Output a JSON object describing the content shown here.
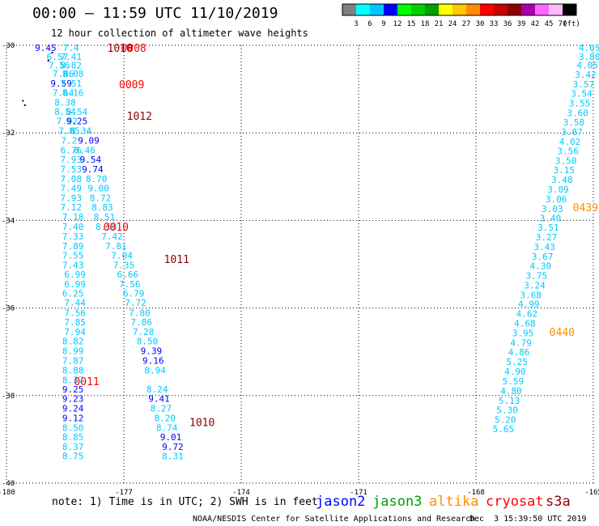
{
  "header": {
    "title": "00:00 — 11:59 UTC 11/10/2019",
    "subtitle": "12 hour collection of altimeter wave heights"
  },
  "legend_scale": {
    "colors": [
      "#808080",
      "#00ffff",
      "#00c8ff",
      "#0000ff",
      "#00ff00",
      "#00d000",
      "#00a000",
      "#ffff00",
      "#ffc800",
      "#ff8c00",
      "#ff0000",
      "#c80000",
      "#8b0000",
      "#aa00aa",
      "#ff66ff",
      "#ffbbff",
      "#000000"
    ],
    "labels": [
      "3",
      "6",
      "9",
      "12",
      "15",
      "18",
      "21",
      "24",
      "27",
      "30",
      "33",
      "36",
      "39",
      "42",
      "45",
      "70",
      "(ft)"
    ]
  },
  "missions": [
    {
      "name": "jason2",
      "color": "#0000ff"
    },
    {
      "name": "jason3",
      "color": "#00a000"
    },
    {
      "name": "altika",
      "color": "#ff8c00"
    },
    {
      "name": "cryosat",
      "color": "#ff0000"
    },
    {
      "name": "s3a",
      "color": "#8b0000"
    }
  ],
  "note": "note: 1) Time is in UTC; 2) SWH is in feet",
  "footer": {
    "left": "NOAA/NESDIS Center for Satellite Applications and Research",
    "right": "Dec  3 15:39:50 UTC 2019"
  },
  "chart_data": {
    "type": "scatter",
    "xlim": [
      -180,
      -165
    ],
    "ylim": [
      -40,
      -30
    ],
    "x_ticks": [
      "-180",
      "-177",
      "-174",
      "-171",
      "-168",
      "-165"
    ],
    "y_ticks": [
      "-30",
      "-32",
      "-34",
      "-36",
      "-38",
      "-40"
    ],
    "grid": true,
    "units": "ft",
    "track_west": [
      {
        "x": -179.0,
        "y": -30.06,
        "v": "9.45",
        "c": "#0000ff"
      },
      {
        "x": -178.7,
        "y": -30.26,
        "v": "6.57",
        "c": "#00c8ff"
      },
      {
        "x": -178.35,
        "y": -30.26,
        "v": "7.41",
        "c": "#00c8ff"
      },
      {
        "x": -178.35,
        "y": -30.06,
        "v": "7.4",
        "c": "#00c8ff"
      },
      {
        "x": -178.65,
        "y": -30.45,
        "v": "7.56",
        "c": "#00c8ff"
      },
      {
        "x": -178.35,
        "y": -30.45,
        "v": "8.82",
        "c": "#00c8ff"
      },
      {
        "x": -178.55,
        "y": -30.65,
        "v": "7.86",
        "c": "#00c8ff"
      },
      {
        "x": -178.3,
        "y": -30.65,
        "v": "8.08",
        "c": "#00c8ff"
      },
      {
        "x": -178.6,
        "y": -30.87,
        "v": "9.59",
        "c": "#0000ff"
      },
      {
        "x": -178.35,
        "y": -30.87,
        "v": "7.51",
        "c": "#00c8ff"
      },
      {
        "x": -178.55,
        "y": -31.08,
        "v": "7.64",
        "c": "#00c8ff"
      },
      {
        "x": -178.3,
        "y": -31.08,
        "v": "8.16",
        "c": "#00c8ff"
      },
      {
        "x": -178.5,
        "y": -31.3,
        "v": "8.38",
        "c": "#00c8ff"
      },
      {
        "x": -178.5,
        "y": -31.52,
        "v": "8.54",
        "c": "#00c8ff"
      },
      {
        "x": -178.2,
        "y": -31.52,
        "v": "8.54",
        "c": "#00c8ff"
      },
      {
        "x": -178.45,
        "y": -31.73,
        "v": "7.92",
        "c": "#00c8ff"
      },
      {
        "x": -178.2,
        "y": -31.73,
        "v": "9.25",
        "c": "#0000ff"
      },
      {
        "x": -178.4,
        "y": -31.95,
        "v": "7.85",
        "c": "#00c8ff"
      },
      {
        "x": -178.1,
        "y": -31.95,
        "v": "8.34",
        "c": "#00c8ff"
      },
      {
        "x": -178.4,
        "y": -32.17,
        "v": "7.2",
        "c": "#00c8ff"
      },
      {
        "x": -177.9,
        "y": -32.17,
        "v": "9.09",
        "c": "#0000ff"
      },
      {
        "x": -178.35,
        "y": -32.39,
        "v": "6.76",
        "c": "#00c8ff"
      },
      {
        "x": -178.0,
        "y": -32.39,
        "v": "8.46",
        "c": "#00c8ff"
      },
      {
        "x": -178.35,
        "y": -32.61,
        "v": "7.93",
        "c": "#00c8ff"
      },
      {
        "x": -177.85,
        "y": -32.61,
        "v": "9.54",
        "c": "#0000ff"
      },
      {
        "x": -178.35,
        "y": -32.83,
        "v": "7.53",
        "c": "#00c8ff"
      },
      {
        "x": -177.8,
        "y": -32.83,
        "v": "9.74",
        "c": "#0000ff"
      },
      {
        "x": -178.35,
        "y": -33.05,
        "v": "7.08",
        "c": "#00c8ff"
      },
      {
        "x": -177.7,
        "y": -33.05,
        "v": "8.70",
        "c": "#00c8ff"
      },
      {
        "x": -178.35,
        "y": -33.26,
        "v": "7.49",
        "c": "#00c8ff"
      },
      {
        "x": -177.65,
        "y": -33.26,
        "v": "9.00",
        "c": "#00c8ff"
      },
      {
        "x": -178.35,
        "y": -33.48,
        "v": "7.93",
        "c": "#00c8ff"
      },
      {
        "x": -177.6,
        "y": -33.48,
        "v": "8.72",
        "c": "#00c8ff"
      },
      {
        "x": -178.35,
        "y": -33.7,
        "v": "7.12",
        "c": "#00c8ff"
      },
      {
        "x": -177.55,
        "y": -33.7,
        "v": "8.83",
        "c": "#00c8ff"
      },
      {
        "x": -178.3,
        "y": -33.92,
        "v": "7.18",
        "c": "#00c8ff"
      },
      {
        "x": -177.5,
        "y": -33.92,
        "v": "8.51",
        "c": "#00c8ff"
      },
      {
        "x": -178.3,
        "y": -34.14,
        "v": "7.40",
        "c": "#00c8ff"
      },
      {
        "x": -177.45,
        "y": -34.14,
        "v": "8.58",
        "c": "#00c8ff"
      },
      {
        "x": -178.3,
        "y": -34.36,
        "v": "7.33",
        "c": "#00c8ff"
      },
      {
        "x": -177.3,
        "y": -34.36,
        "v": "7.42",
        "c": "#00c8ff"
      },
      {
        "x": -178.3,
        "y": -34.58,
        "v": "7.89",
        "c": "#00c8ff"
      },
      {
        "x": -177.2,
        "y": -34.58,
        "v": "7.81",
        "c": "#00c8ff"
      },
      {
        "x": -178.3,
        "y": -34.8,
        "v": "7.55",
        "c": "#00c8ff"
      },
      {
        "x": -177.05,
        "y": -34.8,
        "v": "7.04",
        "c": "#00c8ff"
      },
      {
        "x": -178.3,
        "y": -35.02,
        "v": "7.43",
        "c": "#00c8ff"
      },
      {
        "x": -177.0,
        "y": -35.02,
        "v": "7.35",
        "c": "#00c8ff"
      },
      {
        "x": -178.25,
        "y": -35.23,
        "v": "6.99",
        "c": "#00c8ff"
      },
      {
        "x": -176.9,
        "y": -35.23,
        "v": "6.66",
        "c": "#00c8ff"
      },
      {
        "x": -178.25,
        "y": -35.45,
        "v": "6.99",
        "c": "#00c8ff"
      },
      {
        "x": -176.85,
        "y": -35.45,
        "v": "7.56",
        "c": "#00c8ff"
      },
      {
        "x": -178.3,
        "y": -35.67,
        "v": "6.25",
        "c": "#00c8ff"
      },
      {
        "x": -176.75,
        "y": -35.67,
        "v": "6.79",
        "c": "#00c8ff"
      },
      {
        "x": -178.25,
        "y": -35.88,
        "v": "7.44",
        "c": "#00c8ff"
      },
      {
        "x": -176.7,
        "y": -35.88,
        "v": "7.72",
        "c": "#00c8ff"
      },
      {
        "x": -178.25,
        "y": -36.11,
        "v": "7.56",
        "c": "#00c8ff"
      },
      {
        "x": -176.6,
        "y": -36.11,
        "v": "7.80",
        "c": "#00c8ff"
      },
      {
        "x": -178.25,
        "y": -36.32,
        "v": "7.85",
        "c": "#00c8ff"
      },
      {
        "x": -176.55,
        "y": -36.32,
        "v": "7.86",
        "c": "#00c8ff"
      },
      {
        "x": -178.25,
        "y": -36.54,
        "v": "7.94",
        "c": "#00c8ff"
      },
      {
        "x": -176.5,
        "y": -36.54,
        "v": "7.28",
        "c": "#00c8ff"
      },
      {
        "x": -178.3,
        "y": -36.76,
        "v": "8.82",
        "c": "#00c8ff"
      },
      {
        "x": -176.4,
        "y": -36.76,
        "v": "8.50",
        "c": "#00c8ff"
      },
      {
        "x": -178.3,
        "y": -36.98,
        "v": "8.99",
        "c": "#00c8ff"
      },
      {
        "x": -176.3,
        "y": -36.98,
        "v": "9.39",
        "c": "#0000ff"
      },
      {
        "x": -178.3,
        "y": -37.2,
        "v": "7.87",
        "c": "#00c8ff"
      },
      {
        "x": -176.25,
        "y": -37.2,
        "v": "9.16",
        "c": "#0000ff"
      },
      {
        "x": -178.3,
        "y": -37.42,
        "v": "8.88",
        "c": "#00c8ff"
      },
      {
        "x": -176.2,
        "y": -37.42,
        "v": "8.94",
        "c": "#00c8ff"
      },
      {
        "x": -178.3,
        "y": -37.64,
        "v": "8.37",
        "c": "#00c8ff"
      },
      {
        "x": -176.15,
        "y": -37.86,
        "v": "8.24",
        "c": "#00c8ff"
      },
      {
        "x": -178.3,
        "y": -37.86,
        "v": "9.25",
        "c": "#0000ff"
      },
      {
        "x": -176.1,
        "y": -38.07,
        "v": "9.41",
        "c": "#0000ff"
      },
      {
        "x": -178.3,
        "y": -38.07,
        "v": "9.23",
        "c": "#0000ff"
      },
      {
        "x": -176.05,
        "y": -38.29,
        "v": "8.27",
        "c": "#00c8ff"
      },
      {
        "x": -178.3,
        "y": -38.29,
        "v": "9.24",
        "c": "#0000ff"
      },
      {
        "x": -175.95,
        "y": -38.51,
        "v": "8.20",
        "c": "#00c8ff"
      },
      {
        "x": -178.3,
        "y": -38.51,
        "v": "9.12",
        "c": "#0000ff"
      },
      {
        "x": -175.9,
        "y": -38.73,
        "v": "8.74",
        "c": "#00c8ff"
      },
      {
        "x": -178.3,
        "y": -38.73,
        "v": "8.50",
        "c": "#00c8ff"
      },
      {
        "x": -175.8,
        "y": -38.95,
        "v": "9.01",
        "c": "#0000ff"
      },
      {
        "x": -178.3,
        "y": -38.95,
        "v": "8.85",
        "c": "#00c8ff"
      },
      {
        "x": -175.75,
        "y": -39.17,
        "v": "9.72",
        "c": "#0000ff"
      },
      {
        "x": -178.3,
        "y": -39.17,
        "v": "8.37",
        "c": "#00c8ff"
      },
      {
        "x": -175.75,
        "y": -39.38,
        "v": "8.31",
        "c": "#00c8ff"
      },
      {
        "x": -178.3,
        "y": -39.38,
        "v": "8.75",
        "c": "#00c8ff"
      }
    ],
    "track_east": [
      {
        "x": -165.1,
        "y": -30.06,
        "v": "4.05"
      },
      {
        "x": -165.1,
        "y": -30.26,
        "v": "3.80"
      },
      {
        "x": -165.15,
        "y": -30.45,
        "v": "4.05"
      },
      {
        "x": -165.2,
        "y": -30.67,
        "v": "3.42"
      },
      {
        "x": -165.25,
        "y": -30.89,
        "v": "3.57"
      },
      {
        "x": -165.3,
        "y": -31.1,
        "v": "3.54"
      },
      {
        "x": -165.35,
        "y": -31.32,
        "v": "3.55"
      },
      {
        "x": -165.4,
        "y": -31.54,
        "v": "3.60"
      },
      {
        "x": -165.5,
        "y": -31.76,
        "v": "3.58"
      },
      {
        "x": -165.55,
        "y": -31.98,
        "v": "3.87"
      },
      {
        "x": -165.6,
        "y": -32.2,
        "v": "4.02"
      },
      {
        "x": -165.65,
        "y": -32.41,
        "v": "3.56"
      },
      {
        "x": -165.7,
        "y": -32.63,
        "v": "3.50"
      },
      {
        "x": -165.75,
        "y": -32.85,
        "v": "3.15"
      },
      {
        "x": -165.8,
        "y": -33.07,
        "v": "3.48"
      },
      {
        "x": -165.9,
        "y": -33.29,
        "v": "3.09"
      },
      {
        "x": -165.95,
        "y": -33.51,
        "v": "3.06"
      },
      {
        "x": -166.05,
        "y": -33.73,
        "v": "3.03"
      },
      {
        "x": -166.1,
        "y": -33.95,
        "v": "3.40"
      },
      {
        "x": -166.15,
        "y": -34.16,
        "v": "3.51"
      },
      {
        "x": -166.2,
        "y": -34.38,
        "v": "3.27"
      },
      {
        "x": -166.25,
        "y": -34.6,
        "v": "3.43"
      },
      {
        "x": -166.3,
        "y": -34.82,
        "v": "3.67"
      },
      {
        "x": -166.35,
        "y": -35.04,
        "v": "4.30"
      },
      {
        "x": -166.45,
        "y": -35.26,
        "v": "3.75"
      },
      {
        "x": -166.5,
        "y": -35.48,
        "v": "3.24"
      },
      {
        "x": -166.6,
        "y": -35.7,
        "v": "3.68"
      },
      {
        "x": -166.65,
        "y": -35.91,
        "v": "4.99"
      },
      {
        "x": -166.7,
        "y": -36.13,
        "v": "4.62"
      },
      {
        "x": -166.75,
        "y": -36.35,
        "v": "4.68"
      },
      {
        "x": -166.8,
        "y": -36.57,
        "v": "3.95"
      },
      {
        "x": -166.85,
        "y": -36.79,
        "v": "4.79"
      },
      {
        "x": -166.9,
        "y": -37.01,
        "v": "4.86"
      },
      {
        "x": -166.95,
        "y": -37.23,
        "v": "5.25"
      },
      {
        "x": -167.0,
        "y": -37.45,
        "v": "4.90"
      },
      {
        "x": -167.05,
        "y": -37.67,
        "v": "5.59"
      },
      {
        "x": -167.1,
        "y": -37.89,
        "v": "4.80"
      },
      {
        "x": -167.15,
        "y": -38.11,
        "v": "5.13"
      },
      {
        "x": -167.2,
        "y": -38.33,
        "v": "5.30"
      },
      {
        "x": -167.25,
        "y": -38.55,
        "v": "5.20"
      },
      {
        "x": -167.3,
        "y": -38.76,
        "v": "5.65"
      }
    ],
    "time_labels": [
      {
        "x": -177.1,
        "y": -30.06,
        "text": "1010",
        "c": "#8b0000"
      },
      {
        "x": -176.75,
        "y": -30.06,
        "text": "0008",
        "c": "#ff0000"
      },
      {
        "x": -176.8,
        "y": -30.89,
        "text": "0009",
        "c": "#ff0000"
      },
      {
        "x": -176.6,
        "y": -31.61,
        "text": "1012",
        "c": "#8b0000"
      },
      {
        "x": -177.2,
        "y": -34.14,
        "text": "0010",
        "c": "#ff0000"
      },
      {
        "x": -175.65,
        "y": -34.88,
        "text": "1011",
        "c": "#8b0000"
      },
      {
        "x": -177.95,
        "y": -37.67,
        "text": "0011",
        "c": "#ff0000"
      },
      {
        "x": -175.0,
        "y": -38.6,
        "text": "1010",
        "c": "#8b0000"
      },
      {
        "x": -165.2,
        "y": -33.7,
        "text": "0439",
        "c": "#ff8c00"
      },
      {
        "x": -165.8,
        "y": -36.54,
        "text": "0440",
        "c": "#ff8c00"
      }
    ],
    "dots": [
      {
        "x": -178.85,
        "y": -30.15
      },
      {
        "x": -178.95,
        "y": -30.33
      },
      {
        "x": -179.6,
        "y": -31.25
      },
      {
        "x": -179.55,
        "y": -31.35
      }
    ]
  }
}
